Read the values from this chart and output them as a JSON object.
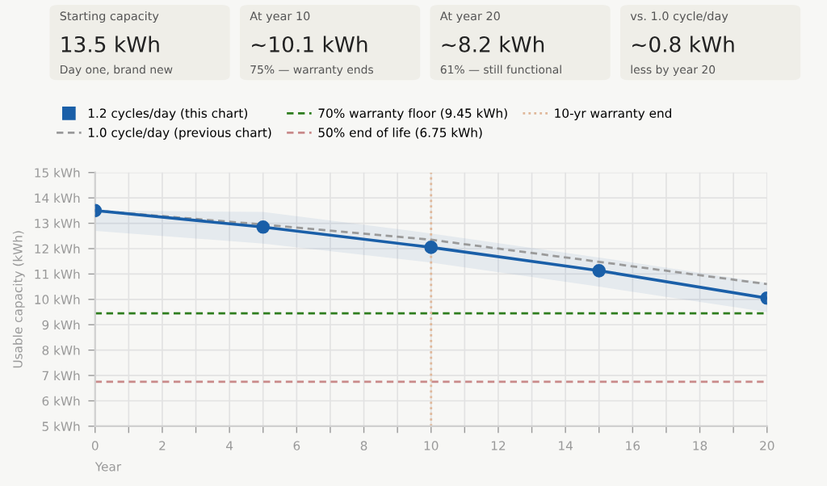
{
  "chart_data": {
    "type": "line",
    "annotations": [
      "Starting capacity",
      "13.5 kWh",
      "Day one, brand new",
      "At year 10",
      "~10.1 kWh",
      "75% — warranty ends",
      "At year 20",
      "~8.2 kWh",
      "61% — still functional",
      "vs. 1.0 cycle/day",
      "~0.8 kWh",
      "less by year 20"
    ],
    "x": [
      0,
      5,
      10,
      15,
      20
    ],
    "series": [
      {
        "name": "1.2 cycles/day (this chart)",
        "color": "#1a5fa8",
        "values": [
          13.5,
          12.85,
          12.05,
          11.13,
          10.05
        ],
        "lower": [
          12.7,
          12.2,
          11.45,
          10.5,
          9.5
        ],
        "upper": [
          13.5,
          13.45,
          12.6,
          11.65,
          10.65
        ],
        "marker": "circle",
        "line_style": "solid"
      },
      {
        "name": "1.0 cycle/day (previous chart)",
        "color": "#9a9a9a",
        "values": [
          13.5,
          12.95,
          12.35,
          11.48,
          10.6
        ],
        "marker": "none",
        "line_style": "dashed"
      }
    ],
    "ref_lines": [
      {
        "axis": "y",
        "value": 9.45,
        "label": "70% warranty floor (9.45 kWh)",
        "color": "#2e7d1e",
        "line_style": "dashed"
      },
      {
        "axis": "y",
        "value": 6.75,
        "label": "50% end of life (6.75 kWh)",
        "color": "#c98a8a",
        "line_style": "dashed"
      },
      {
        "axis": "x",
        "value": 10,
        "label": "10-yr warranty end",
        "color": "#e0b89a",
        "line_style": "dotted"
      }
    ],
    "xlabel": "Year",
    "ylabel": "Usable capacity (kWh)",
    "xlim": [
      0,
      20
    ],
    "ylim": [
      5,
      15
    ],
    "xticks": [
      0,
      {
        "value": 1,
        "label": null
      },
      2,
      {
        "value": 3,
        "label": null
      },
      4,
      {
        "value": 5,
        "label": null
      },
      6,
      {
        "value": 7,
        "label": null
      },
      8,
      {
        "value": 9,
        "label": null
      },
      10,
      {
        "value": 11,
        "label": null
      },
      12,
      {
        "value": 13,
        "label": null
      },
      14,
      {
        "value": 15,
        "label": null
      },
      16,
      {
        "value": 17,
        "label": null
      },
      18,
      {
        "value": 19,
        "label": null
      },
      20
    ],
    "yticks": [
      {
        "value": 5,
        "label": "5 kWh"
      },
      {
        "value": 6,
        "label": "6 kWh"
      },
      {
        "value": 7,
        "label": "7 kWh"
      },
      {
        "value": 8,
        "label": "8 kWh"
      },
      {
        "value": 9,
        "label": "9 kWh"
      },
      {
        "value": 10,
        "label": "10 kWh"
      },
      {
        "value": 11,
        "label": "11 kWh"
      },
      {
        "value": 12,
        "label": "12 kWh"
      },
      {
        "value": 13,
        "label": "13 kWh"
      },
      {
        "value": 14,
        "label": "14 kWh"
      },
      {
        "value": 15,
        "label": "15 kWh"
      }
    ],
    "grid": true,
    "legend": "top"
  }
}
